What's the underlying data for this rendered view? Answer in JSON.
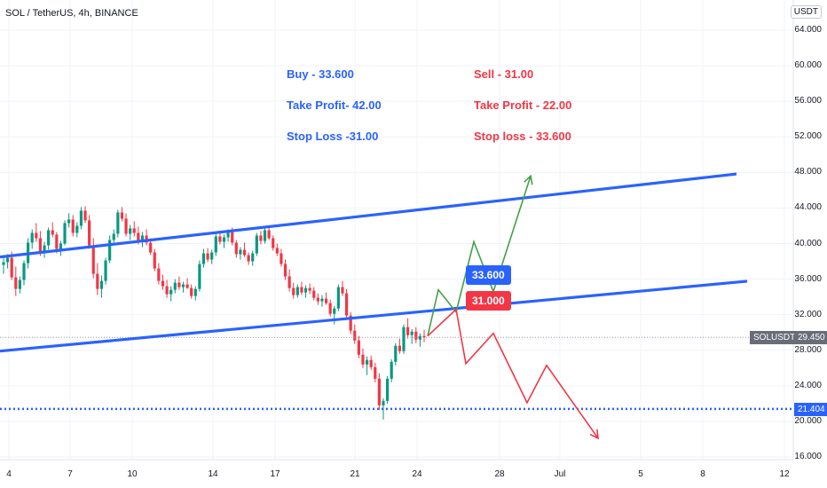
{
  "header": {
    "title": "SOL / TetherUS, 4h, BINANCE",
    "unit_badge": "USDT"
  },
  "notes": {
    "buy": [
      "Buy - 33.600",
      "Take Profit- 42.00",
      "Stop Loss -31.00"
    ],
    "sell": [
      "Sell - 31.00",
      "Take Profit - 22.00",
      "Stop loss - 33.600"
    ]
  },
  "price_labels": {
    "symbol": "SOLUSDT",
    "current": "29.450",
    "support": "21.404",
    "buy_box": "33.600",
    "sell_box": "31.000"
  },
  "colors": {
    "up": "#089981",
    "down": "#f23645",
    "trend": "#2962ff",
    "bull_path": "#43a047",
    "bear_path": "#f23645",
    "grid": "#f0f3fa"
  },
  "chart_data": {
    "type": "candlestick",
    "title": "SOL / TetherUS, 4h, BINANCE",
    "ylim": [
      16,
      65
    ],
    "y_ticks": [
      "64.000",
      "60.000",
      "56.000",
      "52.000",
      "48.000",
      "44.000",
      "40.000",
      "36.000",
      "32.000",
      "28.000",
      "24.000",
      "20.000",
      "16.000"
    ],
    "x_ticks": [
      "4",
      "7",
      "10",
      "14",
      "17",
      "21",
      "24",
      "28",
      "Jul",
      "5",
      "8",
      "12"
    ],
    "grid": true,
    "candles": [
      [
        37.6,
        38.4,
        36.6,
        37.9
      ],
      [
        37.9,
        38.8,
        37.2,
        38.4
      ],
      [
        38.4,
        39.1,
        35.9,
        36.2
      ],
      [
        36.2,
        37.4,
        34.1,
        34.9
      ],
      [
        34.9,
        36.3,
        34.4,
        35.9
      ],
      [
        35.9,
        38.1,
        35.3,
        37.8
      ],
      [
        37.8,
        40.6,
        37.2,
        40.1
      ],
      [
        40.1,
        41.6,
        39.4,
        41.2
      ],
      [
        41.2,
        42.3,
        40.2,
        40.6
      ],
      [
        40.6,
        41.4,
        38.6,
        39.0
      ],
      [
        39.0,
        40.2,
        38.4,
        39.8
      ],
      [
        39.8,
        41.8,
        39.3,
        41.5
      ],
      [
        41.5,
        42.4,
        40.7,
        41.0
      ],
      [
        41.0,
        41.3,
        38.9,
        39.4
      ],
      [
        39.4,
        40.3,
        38.6,
        40.0
      ],
      [
        40.0,
        42.6,
        39.8,
        42.3
      ],
      [
        42.3,
        43.4,
        41.8,
        42.7
      ],
      [
        42.7,
        43.2,
        40.8,
        41.2
      ],
      [
        41.2,
        42.4,
        40.7,
        42.0
      ],
      [
        42.0,
        44.1,
        41.6,
        43.7
      ],
      [
        43.7,
        44.2,
        42.3,
        42.6
      ],
      [
        42.6,
        43.2,
        39.4,
        39.8
      ],
      [
        39.8,
        40.6,
        36.1,
        36.6
      ],
      [
        36.6,
        37.8,
        34.2,
        34.9
      ],
      [
        34.9,
        36.4,
        33.9,
        35.8
      ],
      [
        35.8,
        38.4,
        35.4,
        38.1
      ],
      [
        38.1,
        40.9,
        37.8,
        40.4
      ],
      [
        40.4,
        41.6,
        39.8,
        41.1
      ],
      [
        41.1,
        43.8,
        40.7,
        43.5
      ],
      [
        43.5,
        44.1,
        42.5,
        42.8
      ],
      [
        42.8,
        43.4,
        40.8,
        41.1
      ],
      [
        41.1,
        42.1,
        40.4,
        41.7
      ],
      [
        41.7,
        42.5,
        40.8,
        41.2
      ],
      [
        41.2,
        41.9,
        39.9,
        40.3
      ],
      [
        40.3,
        41.3,
        39.6,
        40.9
      ],
      [
        40.9,
        41.6,
        39.8,
        40.1
      ],
      [
        40.1,
        40.6,
        38.7,
        39.0
      ],
      [
        39.0,
        39.4,
        36.9,
        37.2
      ],
      [
        37.2,
        37.8,
        35.4,
        35.8
      ],
      [
        35.8,
        36.5,
        34.8,
        35.2
      ],
      [
        35.2,
        35.9,
        33.9,
        34.3
      ],
      [
        34.3,
        35.2,
        33.5,
        34.8
      ],
      [
        34.8,
        36.0,
        34.4,
        35.6
      ],
      [
        35.6,
        36.3,
        34.8,
        35.1
      ],
      [
        35.1,
        35.7,
        34.5,
        35.4
      ],
      [
        35.4,
        36.1,
        34.9,
        35.0
      ],
      [
        35.0,
        35.4,
        33.8,
        34.1
      ],
      [
        34.1,
        35.2,
        33.6,
        34.9
      ],
      [
        34.9,
        38.1,
        34.6,
        37.7
      ],
      [
        37.7,
        39.4,
        37.3,
        38.9
      ],
      [
        38.9,
        39.5,
        37.9,
        38.2
      ],
      [
        38.2,
        39.3,
        37.7,
        39.0
      ],
      [
        39.0,
        41.2,
        38.6,
        40.8
      ],
      [
        40.8,
        41.4,
        39.9,
        40.2
      ],
      [
        40.2,
        41.0,
        39.5,
        40.7
      ],
      [
        40.7,
        41.6,
        40.2,
        41.4
      ],
      [
        41.4,
        41.8,
        39.8,
        40.1
      ],
      [
        40.1,
        40.4,
        38.4,
        38.8
      ],
      [
        38.8,
        39.6,
        38.2,
        39.3
      ],
      [
        39.3,
        40.1,
        38.5,
        38.7
      ],
      [
        38.7,
        39.0,
        37.6,
        38.0
      ],
      [
        38.0,
        39.2,
        37.5,
        38.9
      ],
      [
        38.9,
        41.2,
        38.6,
        40.9
      ],
      [
        40.9,
        41.4,
        39.9,
        40.3
      ],
      [
        40.3,
        41.8,
        40.0,
        41.5
      ],
      [
        41.5,
        41.9,
        40.4,
        40.6
      ],
      [
        40.6,
        40.9,
        39.2,
        39.5
      ],
      [
        39.5,
        40.0,
        38.6,
        38.9
      ],
      [
        38.9,
        39.4,
        37.4,
        37.7
      ],
      [
        37.7,
        38.2,
        35.9,
        36.3
      ],
      [
        36.3,
        37.1,
        34.6,
        35.0
      ],
      [
        35.0,
        35.6,
        33.8,
        34.2
      ],
      [
        34.2,
        35.4,
        33.9,
        35.1
      ],
      [
        35.1,
        35.7,
        34.2,
        34.5
      ],
      [
        34.5,
        35.3,
        33.9,
        35.0
      ],
      [
        35.0,
        35.5,
        34.3,
        34.7
      ],
      [
        34.7,
        35.1,
        33.6,
        33.9
      ],
      [
        33.9,
        34.4,
        33.1,
        33.5
      ],
      [
        33.5,
        34.2,
        32.9,
        33.8
      ],
      [
        33.8,
        34.5,
        33.1,
        33.3
      ],
      [
        33.3,
        33.7,
        31.8,
        32.1
      ],
      [
        32.1,
        33.0,
        30.9,
        32.7
      ],
      [
        32.7,
        35.4,
        32.4,
        35.1
      ],
      [
        35.1,
        35.8,
        34.1,
        34.4
      ],
      [
        34.4,
        34.9,
        31.6,
        31.9
      ],
      [
        31.9,
        32.3,
        29.8,
        30.2
      ],
      [
        30.2,
        30.9,
        28.7,
        29.1
      ],
      [
        29.1,
        29.6,
        27.1,
        27.5
      ],
      [
        27.5,
        28.2,
        26.0,
        26.4
      ],
      [
        26.4,
        27.3,
        25.2,
        26.9
      ],
      [
        26.9,
        27.4,
        25.8,
        26.1
      ],
      [
        26.1,
        26.6,
        24.4,
        24.8
      ],
      [
        24.8,
        25.4,
        21.3,
        21.8
      ],
      [
        21.8,
        22.6,
        20.2,
        22.3
      ],
      [
        22.3,
        25.1,
        22.0,
        24.8
      ],
      [
        24.8,
        27.0,
        24.4,
        26.7
      ],
      [
        26.7,
        28.8,
        26.3,
        28.5
      ],
      [
        28.5,
        29.3,
        27.6,
        27.9
      ],
      [
        27.9,
        30.9,
        27.6,
        30.6
      ],
      [
        30.6,
        31.6,
        29.3,
        29.7
      ],
      [
        29.7,
        30.4,
        28.7,
        30.1
      ],
      [
        30.1,
        30.6,
        28.8,
        29.2
      ],
      [
        29.2,
        29.9,
        28.4,
        29.6
      ],
      [
        29.6,
        30.3,
        28.9,
        29.45
      ]
    ],
    "channel": {
      "upper": {
        "x1": "4",
        "y1": 38.6,
        "x2": "8",
        "y2": 47.4
      },
      "lower": {
        "x1": "4",
        "y1": 28.0,
        "x2": "8",
        "y2": 35.3
      }
    },
    "support_level": 21.404,
    "current_price": 29.45,
    "projection_bull": [
      29.6,
      34.8,
      32.3,
      40.2,
      34.6,
      47.6
    ],
    "projection_bear": [
      29.6,
      32.6,
      26.5,
      29.9,
      22.1,
      26.3,
      18.1
    ]
  }
}
